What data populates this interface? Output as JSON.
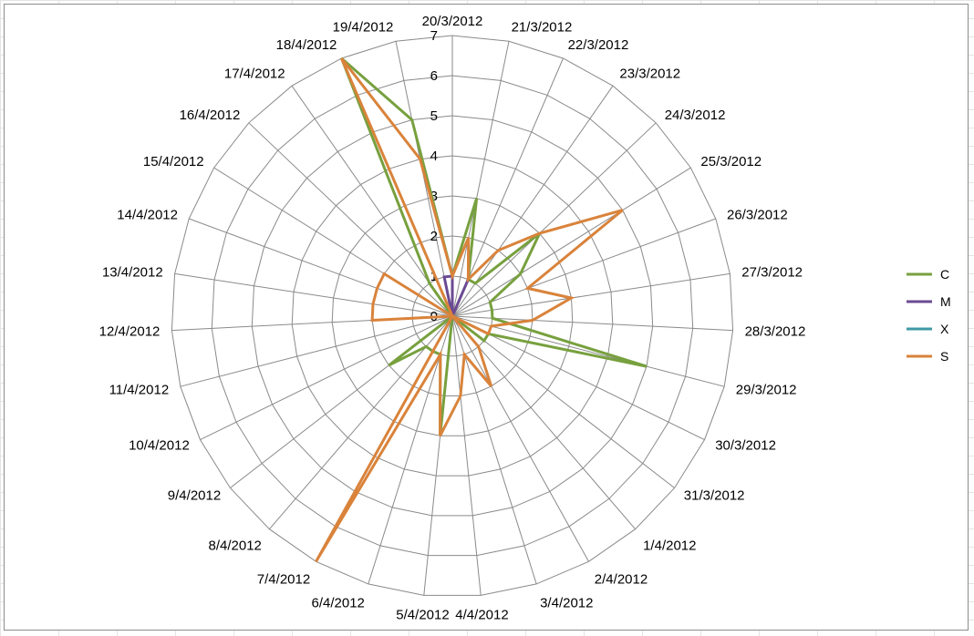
{
  "chart_data": {
    "type": "radar",
    "categories": [
      "20/3/2012",
      "21/3/2012",
      "22/3/2012",
      "23/3/2012",
      "24/3/2012",
      "25/3/2012",
      "26/3/2012",
      "27/3/2012",
      "28/3/2012",
      "29/3/2012",
      "30/3/2012",
      "31/3/2012",
      "1/4/2012",
      "2/4/2012",
      "3/4/2012",
      "4/4/2012",
      "5/4/2012",
      "6/4/2012",
      "7/4/2012",
      "8/4/2012",
      "9/4/2012",
      "10/4/2012",
      "11/4/2012",
      "12/4/2012",
      "13/4/2012",
      "14/4/2012",
      "15/4/2012",
      "16/4/2012",
      "17/4/2012",
      "18/4/2012",
      "19/4/2012"
    ],
    "ticks": [
      "0",
      "1",
      "2",
      "3",
      "4",
      "5",
      "6",
      "7"
    ],
    "rlim": [
      0,
      7
    ],
    "series": [
      {
        "name": "C",
        "color": "#77a03e",
        "values": [
          1,
          3,
          1,
          1,
          3,
          2,
          1,
          1,
          1,
          5,
          1,
          1,
          0,
          0,
          0,
          0,
          3,
          1,
          1,
          1,
          2,
          0,
          0,
          0,
          0,
          0,
          0,
          0,
          1,
          7,
          5
        ]
      },
      {
        "name": "M",
        "color": "#6b4a92",
        "values": [
          1,
          0,
          1,
          0,
          0,
          0,
          0,
          0,
          0,
          0,
          0,
          0,
          0,
          0,
          0,
          0,
          0,
          0,
          0,
          0,
          0,
          0,
          0,
          0,
          0,
          0,
          0,
          0,
          0,
          0,
          1
        ]
      },
      {
        "name": "X",
        "color": "#3e9aa6",
        "values": [
          0,
          0,
          0,
          0,
          0,
          0,
          0,
          0,
          0,
          0,
          0,
          0,
          0,
          0,
          0,
          0,
          0,
          0,
          0,
          0,
          0,
          0,
          0,
          0,
          0,
          0,
          0,
          0,
          0,
          0,
          0
        ]
      },
      {
        "name": "S",
        "color": "#d9833b",
        "values": [
          1,
          2,
          1,
          2,
          3,
          5,
          2,
          3,
          2,
          1,
          1,
          0,
          1,
          2,
          1,
          2,
          3,
          1,
          7,
          0,
          0,
          0,
          0,
          2,
          2,
          2,
          2,
          0,
          0,
          7,
          4
        ]
      }
    ],
    "legend": "right"
  }
}
